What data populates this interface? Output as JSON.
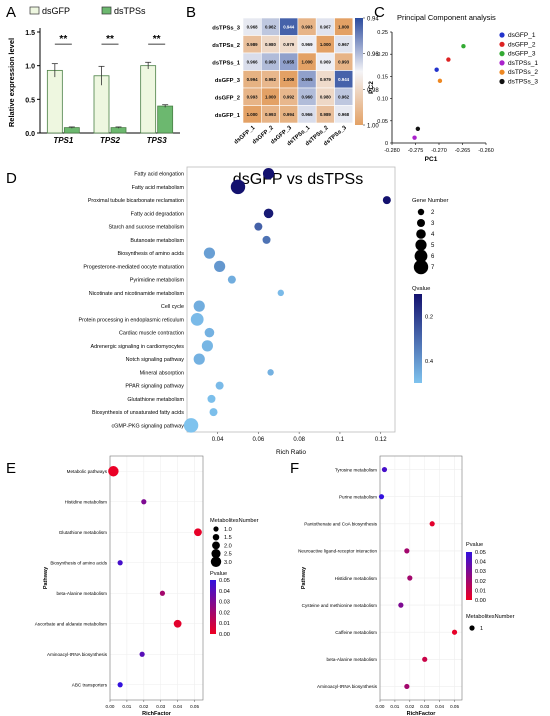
{
  "panels": {
    "A": {
      "letter": "A",
      "ylabel": "Relative expression level",
      "legend": [
        "dsGFP",
        "dsTPSs"
      ],
      "colors": {
        "dsGFP": "#eef7e0",
        "dsTPSs": "#6cb86f"
      },
      "sig": "**",
      "yticks": [
        "0.0",
        "0.5",
        "1.0",
        "1.5"
      ]
    },
    "B": {
      "letter": "B",
      "scale_labels": [
        "0.94",
        "0.96",
        "0.98",
        "1.00"
      ]
    },
    "C": {
      "letter": "C",
      "title": "Principal Component analysis",
      "xlabel": "PC1",
      "ylabel": "PC2"
    },
    "D": {
      "letter": "D",
      "title": "dsGFP vs dsTPSs",
      "xlabel": "Rich Ratio",
      "size_legend_title": "Gene Number",
      "color_legend_title": "Qvalue",
      "color_ticks": [
        "0.2",
        "0.4"
      ]
    },
    "E": {
      "letter": "E",
      "xlabel": "RichFactor",
      "ylabel": "Pathway",
      "size_legend_title": "MetabolitesNumber",
      "color_legend_title": "Pvalue",
      "size_ticks": [
        "1.0",
        "1.5",
        "2.0",
        "2.5",
        "3.0"
      ],
      "color_ticks": [
        "0.05",
        "0.04",
        "0.03",
        "0.02",
        "0.01",
        "0.00"
      ]
    },
    "F": {
      "letter": "F",
      "xlabel": "RichFactor",
      "ylabel": "Pathway",
      "size_legend_title": "MetabolitesNumber",
      "color_legend_title": "Pvalue",
      "size_ticks": [
        "1"
      ],
      "color_ticks": [
        "0.05",
        "0.04",
        "0.03",
        "0.02",
        "0.01",
        "0.00"
      ]
    }
  },
  "chart_data": [
    {
      "type": "bar",
      "panel": "A",
      "categories": [
        "TPS1",
        "TPS2",
        "TPS3"
      ],
      "series": [
        {
          "name": "dsGFP",
          "values": [
            0.93,
            0.85,
            1.0
          ],
          "errors": [
            0.1,
            0.14,
            0.05
          ]
        },
        {
          "name": "dsTPSs",
          "values": [
            0.08,
            0.08,
            0.4
          ],
          "errors": [
            0.01,
            0.01,
            0.02
          ]
        }
      ],
      "ylabel": "Relative expression level",
      "ylim": [
        0,
        1.5
      ],
      "yticks": [
        0.0,
        0.5,
        1.0,
        1.5
      ],
      "annotations": [
        "**",
        "**",
        "**"
      ]
    },
    {
      "type": "heatmap",
      "panel": "B",
      "rows": [
        "dsTPSs_3",
        "dsTPSs_2",
        "dsTPSs_1",
        "dsGFP_3",
        "dsGFP_2",
        "dsGFP_1"
      ],
      "cols": [
        "dsGFP_1",
        "dsGFP_2",
        "dsGFP_3",
        "dsTPSs_1",
        "dsTPSs_2",
        "dsTPSs_3"
      ],
      "values": [
        [
          0.968,
          0.962,
          0.944,
          0.993,
          0.967,
          1.0
        ],
        [
          0.989,
          0.98,
          0.979,
          0.969,
          1.0,
          0.967
        ],
        [
          0.966,
          0.96,
          0.955,
          1.0,
          0.969,
          0.993
        ],
        [
          0.994,
          0.992,
          1.0,
          0.955,
          0.979,
          0.944
        ],
        [
          0.993,
          1.0,
          0.992,
          0.96,
          0.98,
          0.962
        ],
        [
          1.0,
          0.993,
          0.994,
          0.966,
          0.989,
          0.968
        ]
      ],
      "range": [
        0.94,
        1.0
      ]
    },
    {
      "type": "scatter",
      "panel": "C",
      "title": "Principal Component analysis",
      "xlabel": "PC1",
      "ylabel": "PC2",
      "xlim": [
        -0.28,
        -0.26
      ],
      "ylim": [
        0,
        0.25
      ],
      "xticks": [
        -0.28,
        -0.275,
        -0.27,
        -0.265,
        -0.26
      ],
      "yticks": [
        0,
        0.05,
        0.1,
        0.15,
        0.2,
        0.25
      ],
      "series": [
        {
          "name": "dsGFP_1",
          "color": "#2233cc",
          "x": [
            -0.2705
          ],
          "y": [
            0.165
          ]
        },
        {
          "name": "dsGFP_2",
          "color": "#dd2222",
          "x": [
            -0.268
          ],
          "y": [
            0.188
          ]
        },
        {
          "name": "dsGFP_3",
          "color": "#33aa33",
          "x": [
            -0.2648
          ],
          "y": [
            0.218
          ]
        },
        {
          "name": "dsTPSs_1",
          "color": "#aa22cc",
          "x": [
            -0.2752
          ],
          "y": [
            0.012
          ]
        },
        {
          "name": "dsTPSs_2",
          "color": "#ee8822",
          "x": [
            -0.2698
          ],
          "y": [
            0.14
          ]
        },
        {
          "name": "dsTPSs_3",
          "color": "#111111",
          "x": [
            -0.2745
          ],
          "y": [
            0.032
          ]
        }
      ]
    },
    {
      "type": "scatter",
      "panel": "D",
      "title": "dsGFP vs dsTPSs",
      "xlabel": "Rich Ratio",
      "xlim": [
        0.025,
        0.127
      ],
      "xticks": [
        0.04,
        0.06,
        0.08,
        0.1,
        0.12
      ],
      "size_legend": [
        2,
        3,
        4,
        5,
        6,
        7
      ],
      "qvalue_range": [
        0.1,
        0.5
      ],
      "categories": [
        "Fatty acid elongation",
        "Fatty acid metabolism",
        "Proximal tubule bicarbonate reclamation",
        "Fatty acid degradation",
        "Starch and sucrose metabolism",
        "Butanoate metabolism",
        "Biosynthesis of amino acids",
        "Progesterone-mediated oocyte maturation",
        "Pyrimidine metabolism",
        "Nicotinate and nicotinamide metabolism",
        "Cell cycle",
        "Protein processing in endoplasmic reticulum",
        "Cardiac muscle contraction",
        "Adrenergic signaling in cardiomyocytes",
        "Notch signaling pathway",
        "Mineral absorption",
        "PPAR signaling pathway",
        "Glutathione metabolism",
        "Biosynthesis of unsaturated fatty acids",
        "cGMP-PKG signaling pathway"
      ],
      "x": [
        0.065,
        0.05,
        0.123,
        0.065,
        0.06,
        0.064,
        0.036,
        0.041,
        0.047,
        0.071,
        0.031,
        0.03,
        0.036,
        0.035,
        0.031,
        0.066,
        0.041,
        0.037,
        0.038,
        0.027
      ],
      "gene_number": [
        5,
        7,
        3,
        4,
        3,
        3,
        5,
        5,
        3,
        2,
        5,
        6,
        4,
        5,
        5,
        2,
        3,
        3,
        3,
        7
      ],
      "qvalue": [
        0.1,
        0.1,
        0.1,
        0.12,
        0.28,
        0.32,
        0.42,
        0.4,
        0.45,
        0.48,
        0.45,
        0.48,
        0.46,
        0.47,
        0.46,
        0.46,
        0.48,
        0.49,
        0.49,
        0.5
      ]
    },
    {
      "type": "scatter",
      "panel": "E",
      "xlabel": "RichFactor",
      "ylabel": "Pathway",
      "xlim": [
        0,
        0.055
      ],
      "xticks": [
        0.0,
        0.01,
        0.02,
        0.03,
        0.04,
        0.05
      ],
      "xtick_labels": [
        "0.00",
        "0.01",
        "0.02",
        "0.03",
        "0.04",
        "0.05"
      ],
      "categories": [
        "Metabolic pathways",
        "Histidine metabolism",
        "Glutathione metabolism",
        "Biosynthesis of amino acids",
        "beta-Alanine metabolism",
        "Ascorbate and aldarate metabolism",
        "Aminoacyl-tRNA biosynthesis",
        "ABC transporters"
      ],
      "x": [
        0.002,
        0.02,
        0.052,
        0.006,
        0.031,
        0.04,
        0.019,
        0.006
      ],
      "metabolites_number": [
        3,
        1,
        2,
        1,
        1,
        2,
        1,
        1
      ],
      "pvalue": [
        0.001,
        0.03,
        0.002,
        0.045,
        0.02,
        0.003,
        0.04,
        0.05
      ]
    },
    {
      "type": "scatter",
      "panel": "F",
      "xlabel": "RichFactor",
      "ylabel": "Pathway",
      "xlim": [
        0,
        0.055
      ],
      "xticks": [
        0.0,
        0.01,
        0.02,
        0.03,
        0.04,
        0.05
      ],
      "xtick_labels": [
        "0.00",
        "0.01",
        "0.02",
        "0.03",
        "0.04",
        "0.05"
      ],
      "categories": [
        "Tyrosine metabolism",
        "Purine metabolism",
        "Pantothenate and CoA biosynthesis",
        "Neuroactive ligand-receptor interaction",
        "Histidine metabolism",
        "Cysteine and methionine metabolism",
        "Caffeine metabolism",
        "beta-Alanine metabolism",
        "Aminoacyl-tRNA biosynthesis"
      ],
      "x": [
        0.003,
        0.001,
        0.035,
        0.018,
        0.02,
        0.014,
        0.05,
        0.03,
        0.018
      ],
      "metabolites_number": [
        1,
        1,
        1,
        1,
        1,
        1,
        1,
        1,
        1
      ],
      "pvalue": [
        0.045,
        0.05,
        0.003,
        0.02,
        0.02,
        0.03,
        0.002,
        0.01,
        0.02
      ]
    }
  ]
}
